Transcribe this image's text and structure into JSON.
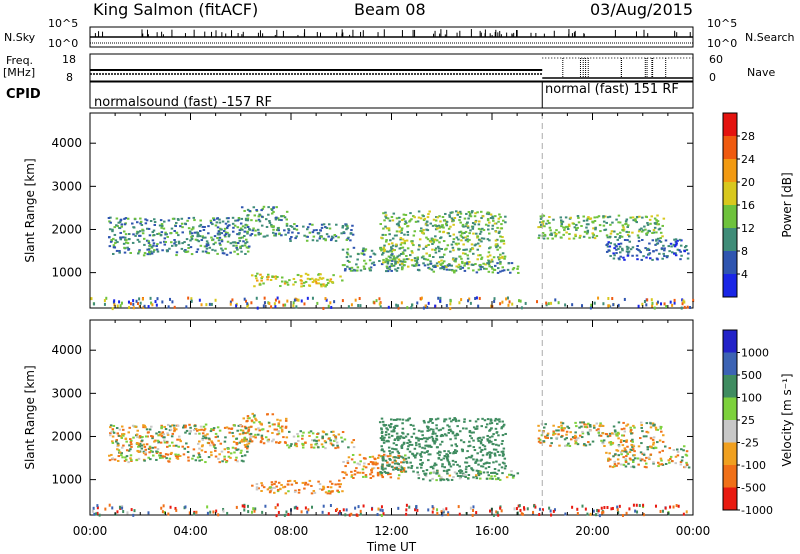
{
  "header": {
    "station": "King Salmon (fitACF)",
    "beam": "Beam 08",
    "date": "03/Aug/2015"
  },
  "side_labels": {
    "nsky": "N.Sky",
    "freq_top": "Freq.",
    "freq_unit": "[MHz]",
    "cpid": "CPID",
    "nsearch": "N.Search",
    "nave": "Nave"
  },
  "small_axes": {
    "nsky_ticks": [
      "10^5",
      "10^0"
    ],
    "nsearch_ticks": [
      "10^5",
      "10^0"
    ],
    "freq_ticks": [
      "18",
      "8"
    ],
    "nave_ticks": [
      "60",
      "0"
    ]
  },
  "cpid_blocks": [
    {
      "label": "normalsound (fast)  -157 RF",
      "start_hour": 0,
      "end_hour": 18
    },
    {
      "label": "normal (fast)  151 RF",
      "start_hour": 18,
      "end_hour": 24
    }
  ],
  "chart_data": [
    {
      "type": "heatmap",
      "quantity": "power",
      "ylabel": "Slant Range [km]",
      "yticks": [
        1000,
        2000,
        3000,
        4000
      ],
      "ylim": [
        180,
        4700
      ],
      "xlim": [
        0,
        24
      ],
      "colorbar": {
        "label": "Power [dB]",
        "ticks": [
          4,
          8,
          12,
          16,
          20,
          24,
          28
        ],
        "colors": [
          "#1a26e6",
          "#2f55b0",
          "#3f8c78",
          "#6ec23c",
          "#d8c81e",
          "#f29a12",
          "#ef5a0f",
          "#e4130f"
        ]
      },
      "bands": [
        {
          "x0": 0.7,
          "x1": 6.3,
          "y0": 1420,
          "y1": 2300,
          "value": 10
        },
        {
          "x0": 6.0,
          "x1": 7.8,
          "y0": 1850,
          "y1": 2550,
          "value": 11
        },
        {
          "x0": 7.8,
          "x1": 10.5,
          "y0": 1750,
          "y1": 2150,
          "value": 9
        },
        {
          "x0": 6.4,
          "x1": 10.0,
          "y0": 700,
          "y1": 1000,
          "value": 17
        },
        {
          "x0": 10.0,
          "x1": 12.5,
          "y0": 1050,
          "y1": 1600,
          "value": 11
        },
        {
          "x0": 11.5,
          "x1": 16.5,
          "y0": 1150,
          "y1": 2450,
          "value": 13
        },
        {
          "x0": 13.0,
          "x1": 17.0,
          "y0": 1000,
          "y1": 1250,
          "value": 10
        },
        {
          "x0": 17.8,
          "x1": 22.8,
          "y0": 1800,
          "y1": 2350,
          "value": 13
        },
        {
          "x0": 20.5,
          "x1": 23.8,
          "y0": 1300,
          "y1": 1800,
          "value": 7
        }
      ]
    },
    {
      "type": "heatmap",
      "quantity": "velocity",
      "xlabel": "Time UT",
      "ylabel": "Slant Range [km]",
      "yticks": [
        1000,
        2000,
        3000,
        4000
      ],
      "xticks": [
        "00:00",
        "04:00",
        "08:00",
        "12:00",
        "16:00",
        "20:00",
        "00:00"
      ],
      "ylim": [
        180,
        4700
      ],
      "xlim": [
        0,
        24
      ],
      "colorbar": {
        "label": "Velocity [m s^-1]",
        "ticks": [
          1000,
          500,
          100,
          25,
          -25,
          -100,
          -500,
          -1000
        ],
        "colors": [
          "#2222c8",
          "#3c63b4",
          "#3f8c60",
          "#7dd13c",
          "#c8c8c8",
          "#f0a020",
          "#f07018",
          "#e81a10"
        ]
      },
      "bands": [
        {
          "x0": 0.7,
          "x1": 6.3,
          "y0": 1420,
          "y1": 2300,
          "value": 0
        },
        {
          "x0": 6.0,
          "x1": 7.8,
          "y0": 1850,
          "y1": 2550,
          "value": -60
        },
        {
          "x0": 7.8,
          "x1": 10.5,
          "y0": 1750,
          "y1": 2150,
          "value": 0
        },
        {
          "x0": 6.4,
          "x1": 10.0,
          "y0": 700,
          "y1": 1000,
          "value": -150
        },
        {
          "x0": 10.0,
          "x1": 12.5,
          "y0": 1050,
          "y1": 1600,
          "value": -120
        },
        {
          "x0": 11.5,
          "x1": 16.5,
          "y0": 1150,
          "y1": 2450,
          "value": 300
        },
        {
          "x0": 13.0,
          "x1": 17.0,
          "y0": 1000,
          "y1": 1250,
          "value": 120
        },
        {
          "x0": 17.8,
          "x1": 22.8,
          "y0": 1800,
          "y1": 2350,
          "value": 0
        },
        {
          "x0": 20.5,
          "x1": 23.8,
          "y0": 1300,
          "y1": 1800,
          "value": 0
        }
      ]
    }
  ]
}
